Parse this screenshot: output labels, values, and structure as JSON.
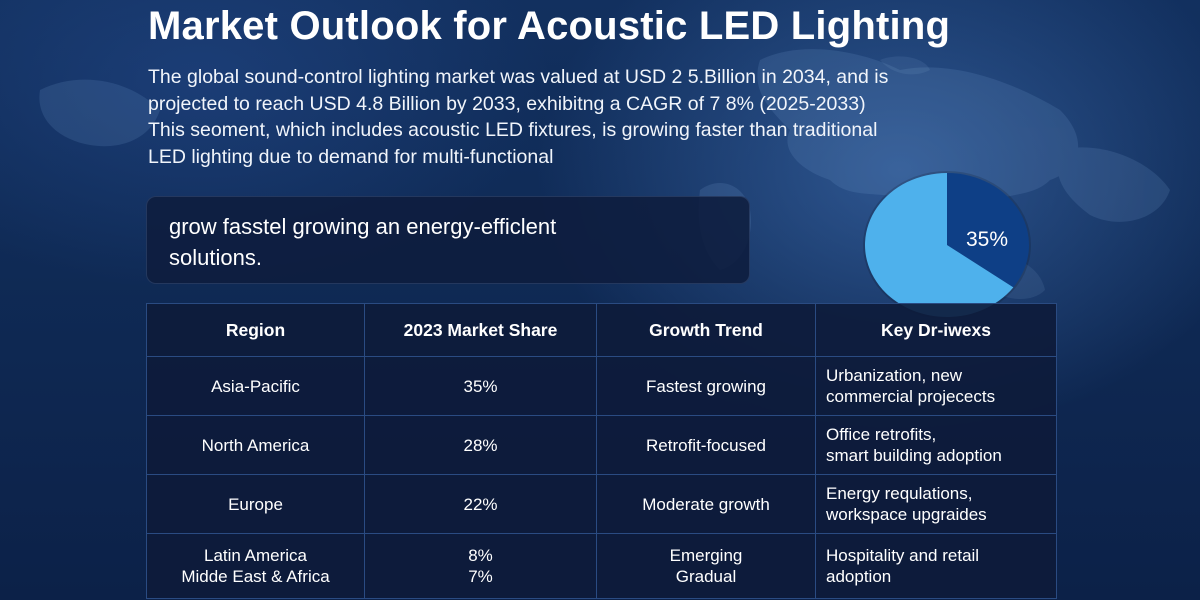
{
  "title": "Market Outlook for Acoustic LED Lighting",
  "intro": {
    "lines": [
      "The global sound-control lighting market was valued at USD 2 5.Billion in 2034, and is",
      "projected to reach USD 4.8 Billion by 2033, exhibitng a CAGR of 7 8% (2025-2033)",
      "This seoment, which includes acoustic LED fixtures, is growing faster than traditional",
      "LED lighting due to demand for multi-functional"
    ]
  },
  "callout": {
    "lines": [
      "grow fasstel growing an energy-efficlent",
      "solutions."
    ]
  },
  "chart_data": {
    "type": "pie",
    "title": "",
    "slices": [
      {
        "label": "35%",
        "value": 35,
        "color": "#0e3f86"
      },
      {
        "label": "",
        "value": 65,
        "color": "#4eb1ec"
      }
    ]
  },
  "table": {
    "headers": [
      "Region",
      "2023 Market Share",
      "Growth Trend",
      "Key Dr-iwexs"
    ],
    "rows": [
      {
        "region": [
          "Asia-Pacific"
        ],
        "share": [
          "35%"
        ],
        "trend": [
          "Fastest growing"
        ],
        "drivers": [
          "Urbanization, new",
          "commercial projecects"
        ]
      },
      {
        "region": [
          "North America"
        ],
        "share": [
          "28%"
        ],
        "trend": [
          "Retrofit-focused"
        ],
        "drivers": [
          "Office retrofits,",
          "smart building adoption"
        ]
      },
      {
        "region": [
          "Europe"
        ],
        "share": [
          "22%"
        ],
        "trend": [
          "Moderate growth"
        ],
        "drivers": [
          "Energy requlations,",
          "workspace upgraides"
        ]
      },
      {
        "region": [
          "Latin America",
          "Midde East & Africa"
        ],
        "share": [
          "8%",
          "7%"
        ],
        "trend": [
          "Emerging",
          "Gradual"
        ],
        "drivers": [
          "Hospitality and retail",
          "adoption"
        ]
      }
    ]
  }
}
